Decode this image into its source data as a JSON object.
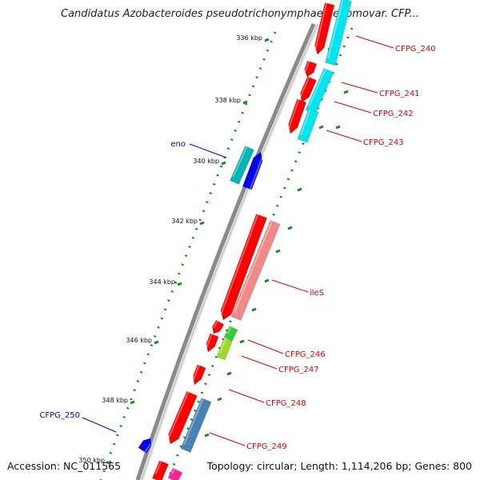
{
  "title": "Candidatus Azobacteroides pseudotrichonymphae genomovar. CFP...",
  "footer": {
    "accession": "Accession: NC_011565",
    "summary": "Topology: circular; Length: 1,114,206 bp; Genes: 800"
  },
  "colors": {
    "backbone": "#8a8a8a",
    "tick": "#1a8a1a",
    "label_red": "#dd0000",
    "label_blue": "#0000cc"
  },
  "ticks": [
    "336 kbp",
    "338 kbp",
    "340 kbp",
    "342 kbp",
    "344 kbp",
    "346 kbp",
    "348 kbp",
    "350 kbp"
  ],
  "genes": [
    {
      "name": "CFPG_240",
      "strand": "+",
      "color": "#ff0000"
    },
    {
      "name": "CFPG_241",
      "strand": "+",
      "color": "#ff0000"
    },
    {
      "name": "CFPG_242",
      "strand": "+",
      "color": "#ff0000"
    },
    {
      "name": "CFPG_243",
      "strand": "+",
      "color": "#ff0000"
    },
    {
      "name": "eno",
      "strand": "-",
      "color": "#0000ff"
    },
    {
      "name": "ileS",
      "strand": "+",
      "color": "#ff0000"
    },
    {
      "name": "CFPG_246",
      "strand": "+",
      "color": "#ff0000"
    },
    {
      "name": "CFPG_247",
      "strand": "+",
      "color": "#ff0000"
    },
    {
      "name": "CFPG_248",
      "strand": "+",
      "color": "#ff0000"
    },
    {
      "name": "CFPG_249",
      "strand": "+",
      "color": "#ff0000"
    },
    {
      "name": "CFPG_250",
      "strand": "-",
      "color": "#0000ff"
    }
  ]
}
